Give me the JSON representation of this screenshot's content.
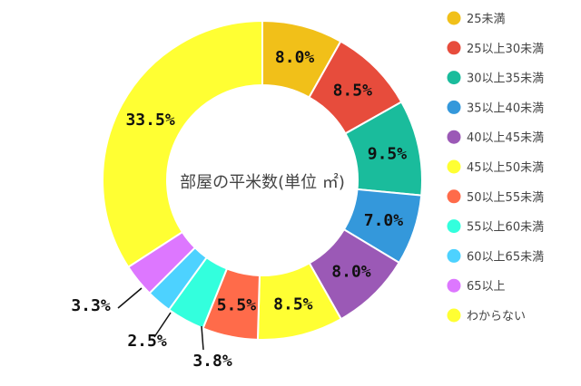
{
  "chart_data": {
    "type": "pie",
    "title": "部屋の平米数(単位 ㎡)",
    "categories": [
      "25未満",
      "25以上30未満",
      "30以上35未満",
      "35以上40未満",
      "40以上45未満",
      "45以上50未満",
      "50以上55未満",
      "55以上60未満",
      "60以上65未満",
      "65以上",
      "わからない"
    ],
    "values": [
      8.0,
      8.5,
      9.5,
      7.0,
      8.0,
      8.5,
      5.5,
      3.8,
      2.5,
      3.3,
      33.5
    ],
    "labels": [
      "8.0%",
      "8.5%",
      "9.5%",
      "7.0%",
      "8.0%",
      "8.5%",
      "5.5%",
      "3.8%",
      "2.5%",
      "3.3%",
      "33.5%"
    ],
    "colors": [
      "#f1c019",
      "#e74c3c",
      "#1abc9c",
      "#3498db",
      "#9b59b6",
      "#ffff33",
      "#ff6b4a",
      "#33ffdd",
      "#4dd2ff",
      "#dd77ff",
      "#ffff33"
    ],
    "legend_position": "right"
  }
}
